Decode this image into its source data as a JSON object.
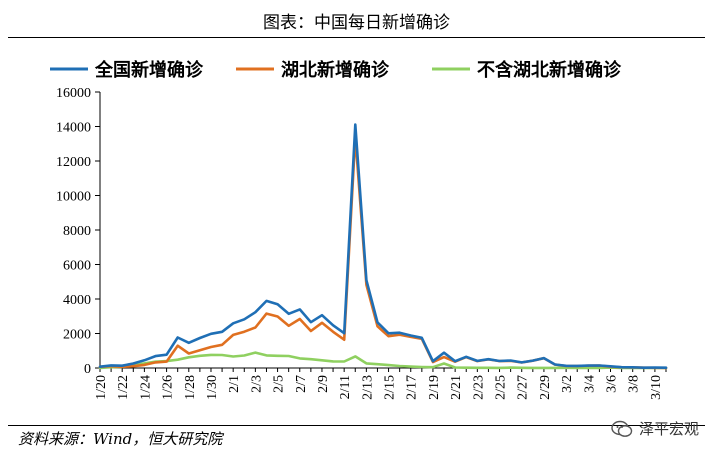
{
  "header": {
    "title": "图表：中国每日新增确诊"
  },
  "footer": {
    "source": "资料来源：Wind，恒大研究院",
    "watermark": "泽平宏观"
  },
  "colors": {
    "national": "#1f6fb5",
    "hubei": "#e07020",
    "non_hubei": "#8fd060",
    "axis": "#000000"
  },
  "chart_data": {
    "type": "line",
    "title": "中国每日新增确诊",
    "xlabel": "",
    "ylabel": "",
    "ylim": [
      0,
      16000
    ],
    "yticks": [
      0,
      2000,
      4000,
      6000,
      8000,
      10000,
      12000,
      14000,
      16000
    ],
    "x": [
      "1/20",
      "1/21",
      "1/22",
      "1/23",
      "1/24",
      "1/25",
      "1/26",
      "1/27",
      "1/28",
      "1/29",
      "1/30",
      "1/31",
      "2/1",
      "2/2",
      "2/3",
      "2/4",
      "2/5",
      "2/6",
      "2/7",
      "2/8",
      "2/9",
      "2/10",
      "2/11",
      "2/12",
      "2/13",
      "2/14",
      "2/15",
      "2/16",
      "2/17",
      "2/18",
      "2/19",
      "2/20",
      "2/21",
      "2/22",
      "2/23",
      "2/24",
      "2/25",
      "2/26",
      "2/27",
      "2/28",
      "2/29",
      "3/1",
      "3/2",
      "3/3",
      "3/4",
      "3/5",
      "3/6",
      "3/7",
      "3/8",
      "3/9",
      "3/10",
      "3/11"
    ],
    "xtick_labels": [
      "1/20",
      "1/22",
      "1/24",
      "1/26",
      "1/28",
      "1/30",
      "2/1",
      "2/3",
      "2/5",
      "2/7",
      "2/9",
      "2/11",
      "2/13",
      "2/15",
      "2/17",
      "2/19",
      "2/21",
      "2/23",
      "2/25",
      "2/27",
      "2/29",
      "3/2",
      "3/4",
      "3/6",
      "3/8",
      "3/10"
    ],
    "legend_position": "top",
    "series": [
      {
        "name": "全国新增确诊",
        "color_key": "national",
        "values": [
          77,
          149,
          131,
          259,
          444,
          688,
          769,
          1771,
          1459,
          1737,
          1981,
          2099,
          2589,
          2825,
          3235,
          3887,
          3694,
          3143,
          3399,
          2656,
          3062,
          2478,
          2015,
          14108,
          5090,
          2641,
          2009,
          2048,
          1886,
          1749,
          394,
          889,
          397,
          648,
          409,
          508,
          406,
          433,
          327,
          427,
          573,
          202,
          125,
          119,
          139,
          143,
          99,
          44,
          40,
          19,
          24,
          15
        ]
      },
      {
        "name": "湖北新增确诊",
        "color_key": "hubei",
        "values": [
          72,
          105,
          69,
          105,
          180,
          323,
          371,
          1291,
          840,
          1032,
          1220,
          1347,
          1921,
          2103,
          2345,
          3156,
          2987,
          2447,
          2841,
          2147,
          2618,
          2097,
          1638,
          13436,
          4823,
          2420,
          1843,
          1933,
          1807,
          1693,
          349,
          631,
          366,
          630,
          398,
          499,
          401,
          409,
          318,
          423,
          570,
          196,
          114,
          115,
          134,
          139,
          74,
          41,
          36,
          17,
          13,
          8
        ]
      },
      {
        "name": "不含湖北新增确诊",
        "color_key": "non_hubei",
        "values": [
          5,
          44,
          62,
          154,
          264,
          365,
          398,
          480,
          619,
          705,
          761,
          752,
          668,
          722,
          890,
          731,
          707,
          696,
          558,
          509,
          444,
          381,
          377,
          672,
          267,
          221,
          166,
          115,
          79,
          56,
          45,
          258,
          31,
          18,
          11,
          9,
          5,
          24,
          9,
          4,
          3,
          6,
          11,
          4,
          5,
          4,
          25,
          3,
          4,
          2,
          11,
          7
        ]
      }
    ]
  }
}
